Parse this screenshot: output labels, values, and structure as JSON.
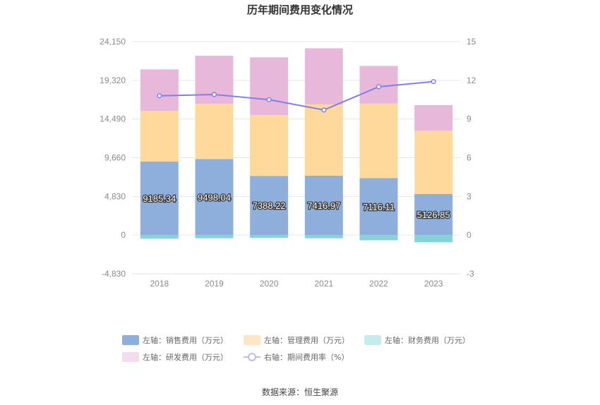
{
  "chart_data": {
    "type": "bar",
    "title": "历年期间费用变化情况",
    "categories": [
      "2018",
      "2019",
      "2020",
      "2021",
      "2022",
      "2023"
    ],
    "left_axis": {
      "ylim": [
        -4830,
        24150
      ],
      "ticks": [
        -4830,
        0,
        4830,
        9660,
        14490,
        19320,
        24150
      ],
      "tick_labels": [
        "-4,830",
        "0",
        "4,830",
        "9,660",
        "14,490",
        "19,320",
        "24,150"
      ]
    },
    "right_axis": {
      "ylim": [
        -3,
        15
      ],
      "ticks": [
        -3,
        0,
        3,
        6,
        9,
        12,
        15
      ],
      "tick_labels": [
        "-3",
        "0",
        "3",
        "6",
        "9",
        "12",
        "15"
      ]
    },
    "series": [
      {
        "name": "左轴：销售费用（万元）",
        "type": "bar",
        "stack": true,
        "axis": "left",
        "color": "#8eafdc",
        "values": [
          9185.34,
          9498.04,
          7388.22,
          7416.97,
          7116.11,
          5126.85
        ],
        "labels": [
          "9185.34",
          "9498.04",
          "7388.22",
          "7416.97",
          "7116.11",
          "5126.85"
        ]
      },
      {
        "name": "左轴：管理费用（万元）",
        "type": "bar",
        "stack": true,
        "axis": "left",
        "color": "#ffd99c",
        "values": [
          6300,
          6900,
          7600,
          8900,
          9300,
          7900
        ]
      },
      {
        "name": "左轴：财务费用（万元）",
        "type": "bar",
        "stack": true,
        "axis": "left",
        "color": "#84d4d6",
        "values": [
          -450,
          -400,
          -350,
          -400,
          -650,
          -900
        ]
      },
      {
        "name": "左轴：研发费用（万元）",
        "type": "bar",
        "stack": true,
        "axis": "left",
        "color": "#e8b8db",
        "values": [
          5200,
          6000,
          7200,
          7000,
          4700,
          3200
        ]
      },
      {
        "name": "右轴：期间费用率（%）",
        "type": "line",
        "axis": "right",
        "color": "#7b80ee",
        "values": [
          10.8,
          10.9,
          10.5,
          9.7,
          11.5,
          11.9
        ]
      }
    ],
    "legend": [
      {
        "label": "左轴：销售费用（万元）",
        "color": "#8eafdc",
        "kind": "box"
      },
      {
        "label": "左轴：管理费用（万元）",
        "color": "#ffe6c2",
        "kind": "box"
      },
      {
        "label": "左轴：财务费用（万元）",
        "color": "#c4ecee",
        "kind": "box"
      },
      {
        "label": "左轴：研发费用（万元）",
        "color": "#f4dbee",
        "kind": "box"
      },
      {
        "label": "右轴：期间费用率（%）",
        "color": "#b9bcf5",
        "kind": "line"
      }
    ],
    "source": "数据来源：恒生聚源"
  }
}
